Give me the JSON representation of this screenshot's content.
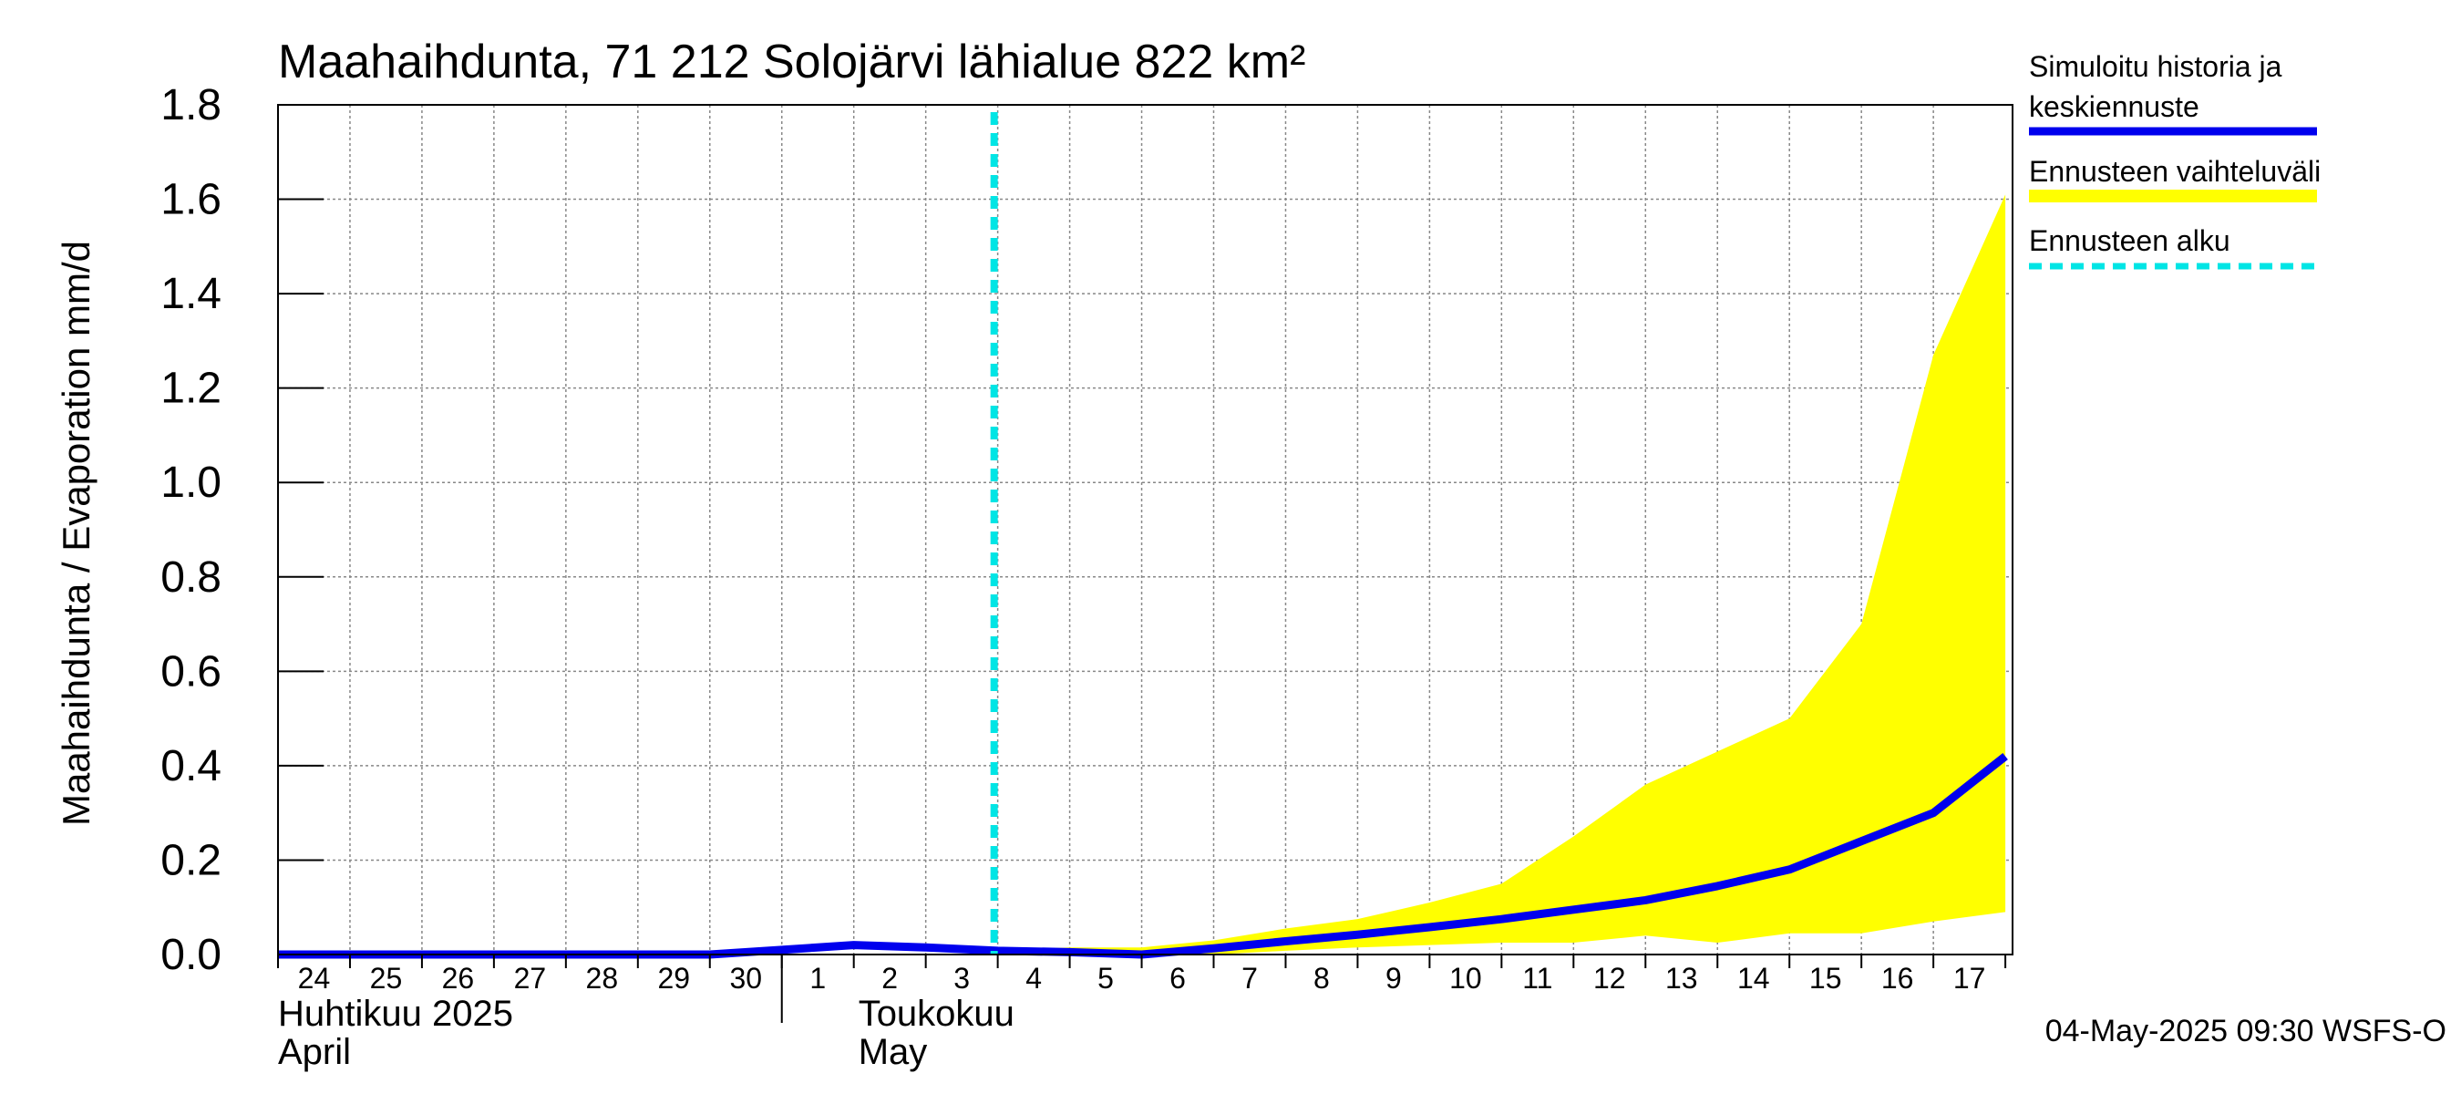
{
  "chart_data": {
    "type": "line",
    "title": "Maahaihdunta, 71 212 Solojärvi lähialue 822 km²",
    "ylabel": "Maahaihdunta / Evaporation   mm/d",
    "ylim": [
      0,
      1.8
    ],
    "yticks": [
      "0.0",
      "0.2",
      "0.4",
      "0.6",
      "0.8",
      "1.0",
      "1.2",
      "1.4",
      "1.6",
      "1.8"
    ],
    "x_day_labels": [
      "24",
      "25",
      "26",
      "27",
      "28",
      "29",
      "30",
      "1",
      "2",
      "3",
      "4",
      "5",
      "6",
      "7",
      "8",
      "9",
      "10",
      "11",
      "12",
      "13",
      "14",
      "15",
      "16",
      "17"
    ],
    "month_labels": [
      {
        "line1": "Huhtikuu  2025",
        "line2": "April"
      },
      {
        "line1": "Toukokuu",
        "line2": "May"
      }
    ],
    "forecast_start_day_index": 10,
    "series": [
      {
        "name": "Simuloitu historia ja keskiennuste",
        "color": "#0000ee",
        "x": [
          0,
          1,
          2,
          3,
          4,
          5,
          6,
          7,
          8,
          9,
          10,
          11,
          12,
          13,
          14,
          15,
          16,
          17,
          18,
          19,
          20,
          21,
          22,
          23,
          24
        ],
        "values": [
          0.0,
          0.0,
          0.0,
          0.0,
          0.0,
          0.0,
          0.0,
          0.01,
          0.02,
          0.015,
          0.008,
          0.005,
          0.0,
          0.013,
          0.028,
          0.042,
          0.058,
          0.075,
          0.095,
          0.115,
          0.145,
          0.18,
          0.24,
          0.3,
          0.42
        ]
      }
    ],
    "band": {
      "name": "Ennusteen vaihteluväli",
      "color": "#ffff00",
      "x": [
        10,
        11,
        12,
        13,
        14,
        15,
        16,
        17,
        18,
        19,
        20,
        21,
        22,
        23,
        24
      ],
      "upper": [
        0.01,
        0.015,
        0.015,
        0.03,
        0.055,
        0.075,
        0.11,
        0.15,
        0.25,
        0.36,
        0.43,
        0.5,
        0.7,
        1.27,
        1.61
      ],
      "lower": [
        0.0,
        0.0,
        0.0,
        0.0,
        0.008,
        0.015,
        0.02,
        0.025,
        0.025,
        0.04,
        0.025,
        0.045,
        0.045,
        0.07,
        0.09
      ]
    },
    "legend": [
      {
        "label_lines": [
          "Simuloitu historia ja",
          "keskiennuste"
        ],
        "style": "solid",
        "color": "#0000ee"
      },
      {
        "label_lines": [
          "Ennusteen vaihteluväli"
        ],
        "style": "band",
        "color": "#ffff00"
      },
      {
        "label_lines": [
          "Ennusteen alku"
        ],
        "style": "dashed",
        "color": "#00e5e5"
      }
    ],
    "footer": "04-May-2025 09:30 WSFS-O"
  }
}
